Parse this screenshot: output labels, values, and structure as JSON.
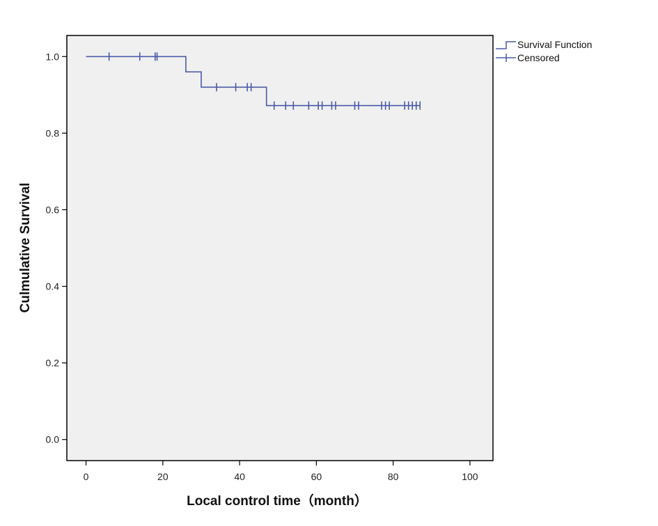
{
  "chart_data": {
    "type": "line",
    "title": "",
    "xlabel": "Local control time（month）",
    "ylabel": "Culmulative Survival",
    "xlim": [
      -5,
      106
    ],
    "ylim": [
      -0.055,
      1.055
    ],
    "x_ticks": [
      0,
      20,
      40,
      60,
      80,
      100
    ],
    "y_ticks": [
      0.0,
      0.2,
      0.4,
      0.6,
      0.8,
      1.0
    ],
    "x_tick_labels": [
      "0",
      "20",
      "40",
      "60",
      "80",
      "100"
    ],
    "y_tick_labels": [
      "0.0",
      "0.2",
      "0.4",
      "0.6",
      "0.8",
      "1.0"
    ],
    "grid": false,
    "legend": {
      "placement": "top-right, outside plot",
      "entries": [
        "Survival Function",
        "Censored"
      ]
    },
    "colors": {
      "series": "#4a5aa8",
      "plot_background": "#f0f0f0",
      "frame": "#000000"
    },
    "series": [
      {
        "name": "Survival Function",
        "kind": "step",
        "x": [
          0,
          26,
          30,
          47,
          87
        ],
        "y": [
          1.0,
          0.96,
          0.92,
          0.872,
          0.872
        ]
      },
      {
        "name": "Censored",
        "kind": "markers",
        "points": [
          {
            "x": 6,
            "y": 1.0
          },
          {
            "x": 14,
            "y": 1.0
          },
          {
            "x": 18,
            "y": 1.0
          },
          {
            "x": 18.5,
            "y": 1.0
          },
          {
            "x": 34,
            "y": 0.92
          },
          {
            "x": 39,
            "y": 0.92
          },
          {
            "x": 42,
            "y": 0.92
          },
          {
            "x": 43,
            "y": 0.92
          },
          {
            "x": 49,
            "y": 0.872
          },
          {
            "x": 52,
            "y": 0.872
          },
          {
            "x": 54,
            "y": 0.872
          },
          {
            "x": 58,
            "y": 0.872
          },
          {
            "x": 60.5,
            "y": 0.872
          },
          {
            "x": 61.5,
            "y": 0.872
          },
          {
            "x": 64,
            "y": 0.872
          },
          {
            "x": 65,
            "y": 0.872
          },
          {
            "x": 70,
            "y": 0.872
          },
          {
            "x": 71,
            "y": 0.872
          },
          {
            "x": 77,
            "y": 0.872
          },
          {
            "x": 78,
            "y": 0.872
          },
          {
            "x": 79,
            "y": 0.872
          },
          {
            "x": 83,
            "y": 0.872
          },
          {
            "x": 84,
            "y": 0.872
          },
          {
            "x": 85,
            "y": 0.872
          },
          {
            "x": 86,
            "y": 0.872
          },
          {
            "x": 87,
            "y": 0.872
          }
        ]
      }
    ]
  }
}
